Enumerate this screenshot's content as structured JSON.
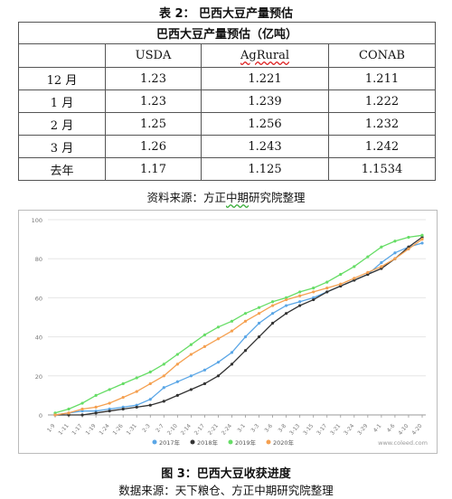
{
  "table": {
    "caption": "表 2： 巴西大豆产量预估",
    "title": "巴西大豆产量预估（亿吨）",
    "headers": [
      "",
      "USDA",
      "AgRural",
      "CONAB"
    ],
    "rows": [
      [
        "12 月",
        "1.23",
        "1.221",
        "1.211"
      ],
      [
        "1 月",
        "1.23",
        "1.239",
        "1.222"
      ],
      [
        "2 月",
        "1.25",
        "1.256",
        "1.232"
      ],
      [
        "3 月",
        "1.26",
        "1.243",
        "1.242"
      ],
      [
        "去年",
        "1.17",
        "1.125",
        "1.1534"
      ]
    ],
    "source_prefix": "资料来源：方正",
    "source_underlined": "中期",
    "source_suffix": "研究院整理"
  },
  "figure": {
    "caption": "图 3：巴西大豆收获进度",
    "source": "数据来源：天下粮仓、方正中期研究院整理",
    "watermark": "www.coleed.com"
  },
  "chart_data": {
    "type": "line",
    "x": [
      "1-9",
      "1-11",
      "1-17",
      "1-19",
      "1-24",
      "1-26",
      "1-31",
      "2-3",
      "2-7",
      "2-10",
      "2-14",
      "2-17",
      "2-21",
      "2-24",
      "3-1",
      "3-3",
      "3-6",
      "3-8",
      "3-13",
      "3-15",
      "3-17",
      "3-21",
      "3-24",
      "3-29",
      "4-1",
      "4-6",
      "4-10",
      "4-20"
    ],
    "ylim": [
      0,
      100
    ],
    "yticks": [
      0,
      20,
      40,
      60,
      80,
      100
    ],
    "grid": true,
    "legend_position": "bottom",
    "series": [
      {
        "name": "2017年",
        "color": "#5aa6e6",
        "values": [
          0,
          1,
          2,
          2,
          3,
          4,
          5,
          8,
          14,
          17,
          20,
          23,
          27,
          32,
          40,
          47,
          52,
          56,
          58,
          60,
          63,
          66,
          69,
          72,
          78,
          83,
          86,
          88
        ]
      },
      {
        "name": "2018年",
        "color": "#333333",
        "values": [
          0,
          0,
          0,
          1,
          2,
          3,
          4,
          5,
          7,
          10,
          13,
          16,
          20,
          26,
          33,
          40,
          47,
          52,
          56,
          59,
          63,
          66,
          69,
          72,
          75,
          80,
          86,
          91
        ]
      },
      {
        "name": "2019年",
        "color": "#66dd66",
        "values": [
          1,
          3,
          6,
          10,
          13,
          16,
          19,
          22,
          26,
          31,
          36,
          41,
          45,
          48,
          52,
          55,
          58,
          60,
          63,
          65,
          68,
          72,
          76,
          81,
          86,
          89,
          91,
          92
        ]
      },
      {
        "name": "2020年",
        "color": "#f5a050",
        "values": [
          0,
          1,
          3,
          4,
          6,
          9,
          12,
          16,
          20,
          26,
          31,
          35,
          39,
          43,
          48,
          52,
          56,
          59,
          61,
          63,
          65,
          67,
          70,
          73,
          76,
          80,
          85,
          90
        ]
      }
    ]
  }
}
